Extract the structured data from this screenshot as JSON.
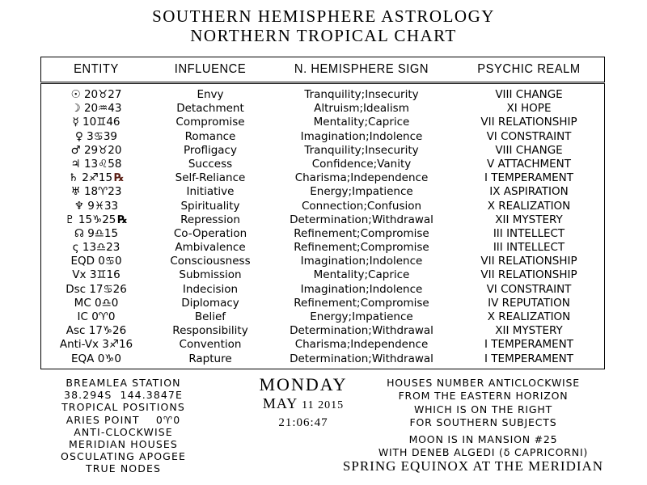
{
  "title": {
    "line1": "SOUTHERN HEMISPHERE ASTROLOGY",
    "line2": "NORTHERN TROPICAL CHART"
  },
  "table": {
    "headers": [
      "ENTITY",
      "INFLUENCE",
      "N. HEMISPHERE SIGN",
      "PSYCHIC REALM"
    ],
    "rows": [
      {
        "entity": "☉ 20♉27",
        "rx": "",
        "rx_red": false,
        "influence": "Envy",
        "sign": "Tranquility;Insecurity",
        "realm": "VIII CHANGE"
      },
      {
        "entity": "☽ 20♒43",
        "rx": "",
        "rx_red": false,
        "influence": "Detachment",
        "sign": "Altruism;Idealism",
        "realm": "XI HOPE"
      },
      {
        "entity": "☿ 10♊46",
        "rx": "",
        "rx_red": false,
        "influence": "Compromise",
        "sign": "Mentality;Caprice",
        "realm": "VII RELATIONSHIP"
      },
      {
        "entity": "♀ 3♋39",
        "rx": "",
        "rx_red": false,
        "influence": "Romance",
        "sign": "Imagination;Indolence",
        "realm": "VI CONSTRAINT"
      },
      {
        "entity": "♂ 29♉20",
        "rx": "",
        "rx_red": false,
        "influence": "Profligacy",
        "sign": "Tranquility;Insecurity",
        "realm": "VIII CHANGE"
      },
      {
        "entity": "♃ 13♌58",
        "rx": "",
        "rx_red": false,
        "influence": "Success",
        "sign": "Confidence;Vanity",
        "realm": "V ATTACHMENT"
      },
      {
        "entity": "♄ 2♐15",
        "rx": "℞",
        "rx_red": true,
        "influence": "Self-Reliance",
        "sign": "Charisma;Independence",
        "realm": "I TEMPERAMENT"
      },
      {
        "entity": "♅ 18♈23",
        "rx": "",
        "rx_red": false,
        "influence": "Initiative",
        "sign": "Energy;Impatience",
        "realm": "IX ASPIRATION"
      },
      {
        "entity": "♆ 9♓33",
        "rx": "",
        "rx_red": false,
        "influence": "Spirituality",
        "sign": "Connection;Confusion",
        "realm": "X REALIZATION"
      },
      {
        "entity": "♇ 15♑25",
        "rx": "℞",
        "rx_red": false,
        "influence": "Repression",
        "sign": "Determination;Withdrawal",
        "realm": "XII MYSTERY"
      },
      {
        "entity": "☊ 9♎15",
        "rx": "",
        "rx_red": false,
        "influence": "Co-Operation",
        "sign": "Refinement;Compromise",
        "realm": "III INTELLECT"
      },
      {
        "entity": "ς 13♎23",
        "rx": "",
        "rx_red": false,
        "influence": "Ambivalence",
        "sign": "Refinement;Compromise",
        "realm": "III INTELLECT"
      },
      {
        "entity": "EQD 0♋0",
        "rx": "",
        "rx_red": false,
        "influence": "Consciousness",
        "sign": "Imagination;Indolence",
        "realm": "VII RELATIONSHIP"
      },
      {
        "entity": "Vx 3♊16",
        "rx": "",
        "rx_red": false,
        "influence": "Submission",
        "sign": "Mentality;Caprice",
        "realm": "VII RELATIONSHIP"
      },
      {
        "entity": "Dsc 17♋26",
        "rx": "",
        "rx_red": false,
        "influence": "Indecision",
        "sign": "Imagination;Indolence",
        "realm": "VI CONSTRAINT"
      },
      {
        "entity": "MC 0♎0",
        "rx": "",
        "rx_red": false,
        "influence": "Diplomacy",
        "sign": "Refinement;Compromise",
        "realm": "IV REPUTATION"
      },
      {
        "entity": "IC 0♈0",
        "rx": "",
        "rx_red": false,
        "influence": "Belief",
        "sign": "Energy;Impatience",
        "realm": "X REALIZATION"
      },
      {
        "entity": "Asc 17♑26",
        "rx": "",
        "rx_red": false,
        "influence": "Responsibility",
        "sign": "Determination;Withdrawal",
        "realm": "XII MYSTERY"
      },
      {
        "entity": "Anti-Vx 3♐16",
        "rx": "",
        "rx_red": false,
        "influence": "Convention",
        "sign": "Charisma;Independence",
        "realm": "I TEMPERAMENT"
      },
      {
        "entity": "EQA 0♑0",
        "rx": "",
        "rx_red": false,
        "influence": "Rapture",
        "sign": "Determination;Withdrawal",
        "realm": "I TEMPERAMENT"
      }
    ]
  },
  "footer": {
    "left_lines": [
      "BREAMLEA STATION",
      "38.294S  144.3847E",
      "TROPICAL POSITIONS",
      "ARIES POINT    0♈0",
      "ANTI-CLOCKWISE",
      "MERIDIAN HOUSES",
      "OSCULATING APOGEE",
      "TRUE NODES"
    ],
    "center": {
      "day": "MONDAY",
      "date_month": "MAY",
      "date_rest": "11 2015",
      "time": "21:06:47"
    },
    "right_lines": [
      "HOUSES NUMBER ANTICLOCKWISE",
      "FROM THE EASTERN HORIZON",
      "WHICH IS ON THE RIGHT",
      "FOR SOUTHERN SUBJECTS",
      "MOON IS IN MANSION #25",
      "WITH DENEB ALGEDI (δ CAPRICORNI)"
    ],
    "bottom": "SPRING EQUINOX AT THE MERIDIAN"
  },
  "colors": {
    "background": "#ffffff",
    "text": "#000000",
    "retrograde_red": "#591c12"
  }
}
